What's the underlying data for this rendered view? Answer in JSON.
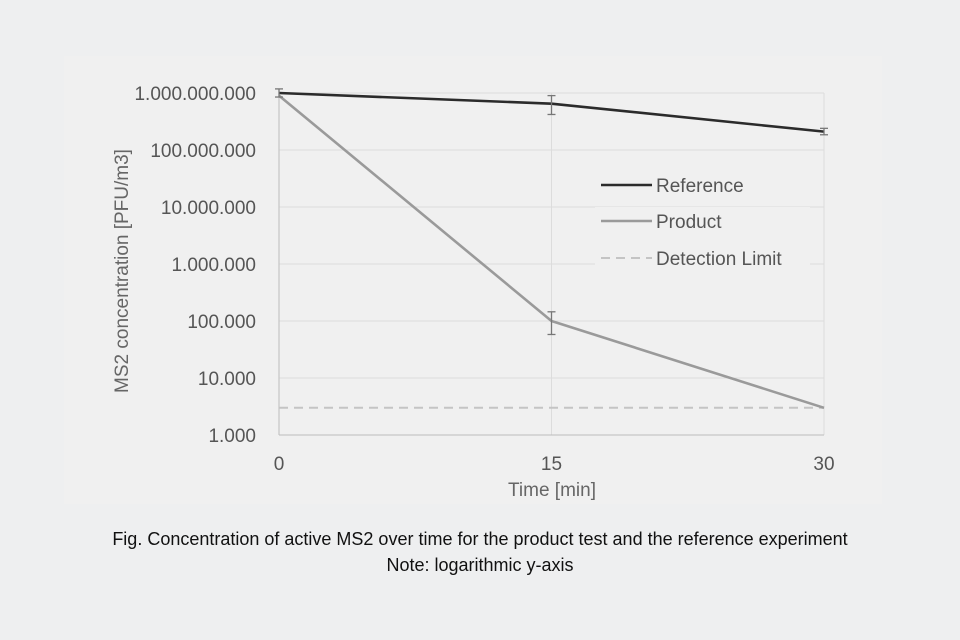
{
  "chart_data": {
    "type": "line",
    "ylabel": "MS2 concentration [PFU/m3]",
    "xlabel": "Time [min]",
    "y_scale": "log",
    "ylim": [
      1000,
      1000000000
    ],
    "y_tick_values": [
      1000,
      10000,
      100000,
      1000000,
      10000000,
      100000000,
      1000000000
    ],
    "y_tick_labels": [
      "1.000",
      "10.000",
      "100.000",
      "1.000.000",
      "10.000.000",
      "100.000.000",
      "1.000.000.000"
    ],
    "xlim": [
      0,
      30
    ],
    "x_ticks": [
      0,
      15,
      30
    ],
    "x_tick_labels": [
      "0",
      "15",
      "30"
    ],
    "grid": "horizontal",
    "legend_position": "right-middle",
    "series": [
      {
        "name": "Reference",
        "color": "#2b2b2b",
        "style": "solid",
        "x": [
          0,
          15,
          30
        ],
        "y": [
          1000000000,
          650000000,
          210000000
        ],
        "error_low": [
          850000000,
          420000000,
          185000000
        ],
        "error_high": [
          1180000000,
          900000000,
          240000000
        ]
      },
      {
        "name": "Product",
        "color": "#9a9a9a",
        "style": "solid",
        "x": [
          0,
          15,
          30
        ],
        "y": [
          900000000,
          100000,
          3000
        ],
        "error_low": [
          null,
          58000,
          null
        ],
        "error_high": [
          null,
          145000,
          null
        ]
      },
      {
        "name": "Detection Limit",
        "color": "#c4c4c4",
        "style": "dashed",
        "x": [
          0,
          30
        ],
        "y": [
          3000,
          3000
        ]
      }
    ]
  },
  "caption": {
    "line1": "Fig. Concentration of active MS2 over time for the product test and the reference experiment",
    "line2": "Note: logarithmic y-axis"
  }
}
